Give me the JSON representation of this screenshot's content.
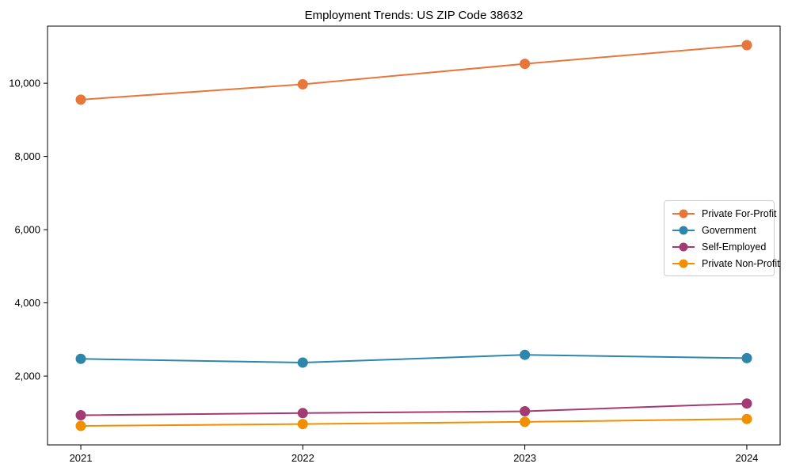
{
  "chart_data": {
    "type": "line",
    "title": "Employment Trends: US ZIP Code 38632",
    "xlabel": "",
    "ylabel": "",
    "x": [
      2021,
      2022,
      2023,
      2024
    ],
    "x_tick_labels": [
      "2021",
      "2022",
      "2023",
      "2024"
    ],
    "y_ticks": [
      2000,
      4000,
      6000,
      8000,
      10000
    ],
    "y_tick_labels": [
      "2,000",
      "4,000",
      "6,000",
      "8,000",
      "10,000"
    ],
    "xlim": [
      2020.85,
      2024.15
    ],
    "ylim": [
      120,
      11560
    ],
    "grid": false,
    "legend_position": "center right",
    "marker": "circle",
    "series": [
      {
        "name": "Private For-Profit",
        "color": "#E8763B",
        "values": [
          9550,
          9970,
          10530,
          11040
        ]
      },
      {
        "name": "Government",
        "color": "#2E86AB",
        "values": [
          2470,
          2370,
          2580,
          2490
        ]
      },
      {
        "name": "Self-Employed",
        "color": "#A23B72",
        "values": [
          930,
          990,
          1040,
          1250
        ]
      },
      {
        "name": "Private Non-Profit",
        "color": "#F18F01",
        "values": [
          640,
          690,
          750,
          830
        ]
      }
    ],
    "colors": {
      "axis": "#000000",
      "background": "#ffffff",
      "legend_border": "#cccccc"
    }
  }
}
